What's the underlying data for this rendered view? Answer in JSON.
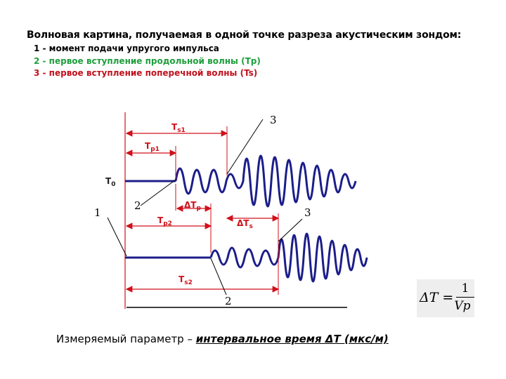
{
  "title": "Волновая картина, получаемая в одной точке разреза акустическим зондом:",
  "legend": [
    {
      "text": "1 - момент подачи упругого импульса",
      "color": "#000000"
    },
    {
      "text": "2 - первое вступление продольной волны (Tp)",
      "color": "#1e9e3c"
    },
    {
      "text": "3 - первое вступление поперечной волны (Ts)",
      "color": "#c0111d"
    }
  ],
  "labels": {
    "ts1": "T",
    "ts1_sub": "s1",
    "tp1": "T",
    "tp1_sub": "p1",
    "t0": "T",
    "t0_sub": "0",
    "dtp": "ΔT",
    "dtp_sub": "p",
    "tp2": "T",
    "tp2_sub": "p2",
    "dts": "ΔT",
    "dts_sub": "s",
    "ts2": "T",
    "ts2_sub": "s2",
    "num1": "1",
    "num2a": "2",
    "num2b": "2",
    "num3a": "3",
    "num3b": "3"
  },
  "formula": {
    "lhs": "ΔT =",
    "numerator": "1",
    "denominator": "Vp"
  },
  "bottom": {
    "prefix": "Измеряемый параметр – ",
    "emphasis": "интервальное время ΔT  (мкс/м)"
  },
  "colors": {
    "wave": "#1c1e8a",
    "marker": "#d0101a",
    "text": "#000000"
  }
}
